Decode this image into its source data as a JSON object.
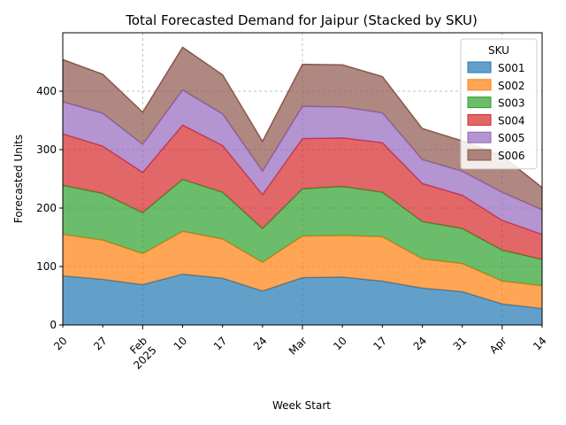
{
  "chart_data": {
    "type": "area",
    "stacked": true,
    "title": "Total Forecasted Demand for Jaipur (Stacked by SKU)",
    "xlabel": "Week Start",
    "ylabel": "Forecasted Units",
    "x": [
      "2025-01-20",
      "2025-01-27",
      "2025-02-03",
      "2025-02-10",
      "2025-02-17",
      "2025-02-24",
      "2025-03-03",
      "2025-03-10",
      "2025-03-17",
      "2025-03-24",
      "2025-03-31",
      "2025-04-07",
      "2025-04-14"
    ],
    "x_ticks": [
      {
        "date": "2025-01-20",
        "label": "20"
      },
      {
        "date": "2025-01-27",
        "label": "27"
      },
      {
        "date": "2025-02-03",
        "label": "Feb\n2025"
      },
      {
        "date": "2025-02-10",
        "label": "10"
      },
      {
        "date": "2025-02-17",
        "label": "17"
      },
      {
        "date": "2025-02-24",
        "label": "24"
      },
      {
        "date": "2025-03-03",
        "label": "Mar"
      },
      {
        "date": "2025-03-10",
        "label": "10"
      },
      {
        "date": "2025-03-17",
        "label": "17"
      },
      {
        "date": "2025-03-24",
        "label": "24"
      },
      {
        "date": "2025-03-31",
        "label": "31"
      },
      {
        "date": "2025-04-07",
        "label": "Apr"
      },
      {
        "date": "2025-04-14",
        "label": "14"
      }
    ],
    "ylim": [
      0,
      500
    ],
    "yticks": [
      0,
      100,
      200,
      300,
      400
    ],
    "grid": true,
    "legend": {
      "title": "SKU",
      "placement": "top-right"
    },
    "series": [
      {
        "name": "S001",
        "color": "#1f77b4",
        "values": [
          84,
          78,
          69,
          87,
          80,
          58,
          81,
          82,
          75,
          63,
          57,
          36,
          28
        ]
      },
      {
        "name": "S002",
        "color": "#ff7f0e",
        "values": [
          71,
          67,
          53,
          73,
          67,
          49,
          71,
          71,
          76,
          50,
          48,
          39,
          39
        ]
      },
      {
        "name": "S003",
        "color": "#2ca02c",
        "values": [
          84,
          80,
          70,
          89,
          80,
          58,
          81,
          84,
          76,
          64,
          60,
          53,
          45
        ]
      },
      {
        "name": "S004",
        "color": "#d62728",
        "values": [
          88,
          81,
          69,
          93,
          80,
          58,
          86,
          83,
          85,
          65,
          57,
          51,
          43
        ]
      },
      {
        "name": "S005",
        "color": "#9467bd",
        "values": [
          55,
          56,
          48,
          60,
          54,
          40,
          55,
          53,
          51,
          41,
          41,
          48,
          42
        ]
      },
      {
        "name": "S006",
        "color": "#8c564b",
        "values": [
          72,
          67,
          55,
          73,
          67,
          51,
          72,
          72,
          62,
          53,
          52,
          62,
          38
        ]
      }
    ]
  }
}
